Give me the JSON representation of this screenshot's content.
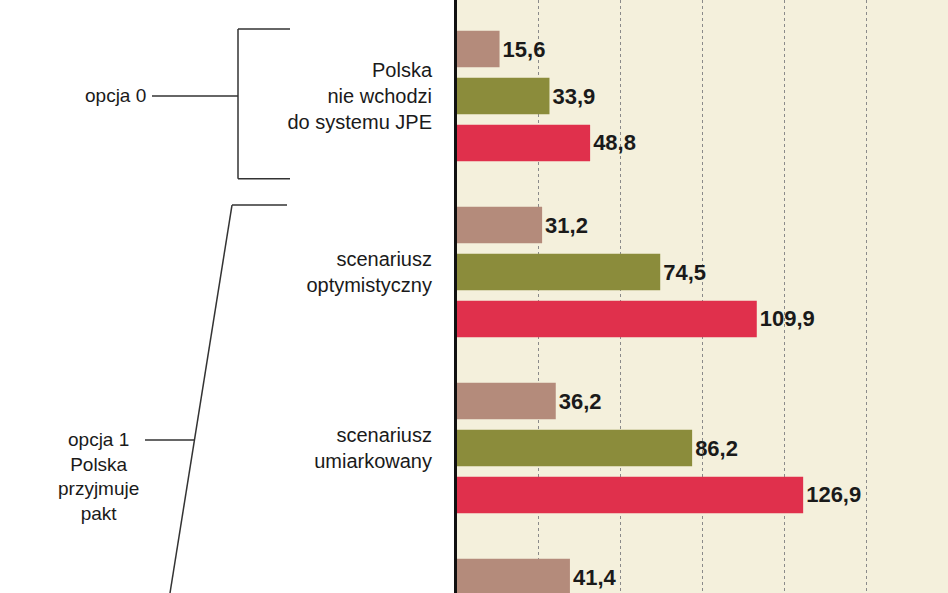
{
  "chart_data": {
    "type": "bar",
    "orientation": "horizontal",
    "categories": [
      "Polska\nnie wchodzi\ndo systemu JPE",
      "scenariusz\noptymistyczny",
      "scenariusz\numiarkowany",
      null
    ],
    "series": [
      {
        "color": "#b48b7b",
        "values": [
          15.6,
          31.2,
          36.2,
          41.4
        ],
        "value_labels": [
          "15,6",
          "31,2",
          "36,2",
          "41,4"
        ]
      },
      {
        "color": "#8b8c3b",
        "values": [
          33.9,
          74.5,
          86.2,
          null
        ],
        "value_labels": [
          "33,9",
          "74,5",
          "86,2",
          null
        ]
      },
      {
        "color": "#e0304c",
        "values": [
          48.8,
          109.9,
          126.9,
          null
        ],
        "value_labels": [
          "48,8",
          "109,9",
          "126,9",
          null
        ]
      }
    ],
    "groups": [
      {
        "label": "opcja 0",
        "categories": [
          0
        ]
      },
      {
        "label": "opcja 1\nPolska\nprzyjmuje\npakt",
        "categories": [
          1,
          2,
          3
        ]
      }
    ],
    "xlim": [
      0,
      180
    ],
    "xticks": [
      0,
      30,
      60,
      90,
      120,
      150,
      180
    ],
    "grid": true,
    "data_labels": true,
    "tick_labels": "y"
  }
}
